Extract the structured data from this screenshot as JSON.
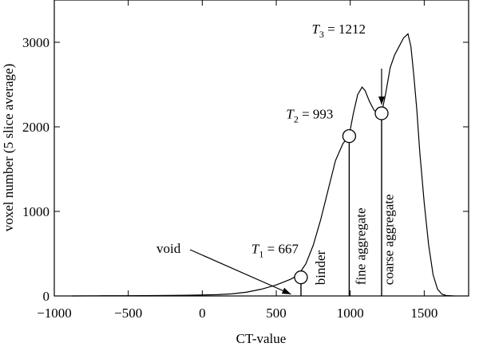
{
  "chart_data": {
    "type": "line",
    "title": "",
    "xlabel": "CT-value",
    "ylabel": "voxel number (5 slice average)",
    "xlim": [
      -1000,
      1800
    ],
    "ylim": [
      0,
      3500
    ],
    "x_ticks": [
      -1000,
      -500,
      0,
      500,
      1000,
      1500
    ],
    "x_tick_labels": [
      "−1000",
      "−500",
      "0",
      "500",
      "1000",
      "1500"
    ],
    "y_ticks": [
      0,
      1000,
      2000,
      3000
    ],
    "y_tick_labels": [
      "0",
      "1000",
      "2000",
      "3000"
    ],
    "grid": false,
    "series": [
      {
        "color": "#000000",
        "x": [
          -880,
          -700,
          -500,
          -300,
          -100,
          100,
          200,
          300,
          400,
          500,
          550,
          600,
          650,
          700,
          750,
          800,
          850,
          900,
          950,
          993,
          1020,
          1050,
          1080,
          1100,
          1130,
          1160,
          1190,
          1212,
          1240,
          1270,
          1300,
          1330,
          1360,
          1390,
          1410,
          1430,
          1450,
          1470,
          1500,
          1530,
          1560,
          1590,
          1620,
          1650,
          1700
        ],
        "values": [
          0,
          2,
          3,
          5,
          8,
          15,
          25,
          45,
          80,
          130,
          165,
          200,
          250,
          380,
          600,
          900,
          1250,
          1600,
          1800,
          1900,
          2150,
          2380,
          2470,
          2430,
          2300,
          2200,
          2150,
          2160,
          2400,
          2700,
          2850,
          2950,
          3050,
          3100,
          2950,
          2600,
          2200,
          1700,
          1100,
          600,
          250,
          80,
          20,
          5,
          0
        ]
      }
    ],
    "thresholds": [
      {
        "name": "T1",
        "label_var": "T",
        "label_sub": "1",
        "label_rest": " = 667",
        "x": 667,
        "y": 220
      },
      {
        "name": "T2",
        "label_var": "T",
        "label_sub": "2",
        "label_rest": " = 993",
        "x": 993,
        "y": 1890
      },
      {
        "name": "T3",
        "label_var": "T",
        "label_sub": "3",
        "label_rest": " = 1212",
        "x": 1212,
        "y": 2160
      }
    ],
    "annotations": [
      {
        "text": "void",
        "rotated": false,
        "target_x": 600,
        "target_y": 20
      },
      {
        "text": "binder",
        "rotated": true,
        "x": 830,
        "y": 130
      },
      {
        "text": "fine aggregate",
        "rotated": true,
        "x": 1100,
        "y": 130
      },
      {
        "text": "coarse aggregate",
        "rotated": true,
        "x": 1290,
        "y": 130
      }
    ]
  }
}
